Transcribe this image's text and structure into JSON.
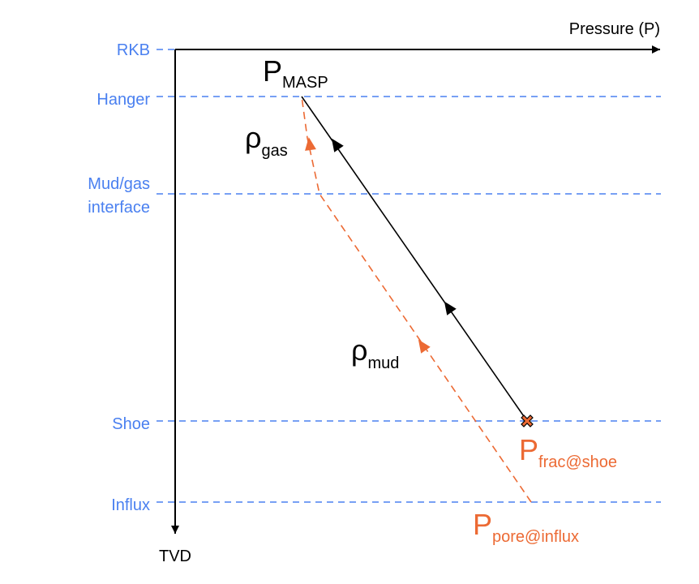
{
  "colors": {
    "blue": "#4a80f0",
    "orange": "#ec6a34",
    "black": "#000000"
  },
  "axes": {
    "x_title": "Pressure (P)",
    "y_title": "TVD"
  },
  "depth_levels": {
    "rkb": "RKB",
    "hanger": "Hanger",
    "interface_line1": "Mud/gas",
    "interface_line2": "interface",
    "shoe": "Shoe",
    "influx": "Influx"
  },
  "symbols": {
    "masp": {
      "main": "P",
      "sub": "MASP"
    },
    "rho_gas": {
      "main": "ρ",
      "sub": "gas"
    },
    "rho_mud": {
      "main": "ρ",
      "sub": "mud"
    },
    "p_frac": {
      "main": "P",
      "sub": "frac@shoe"
    },
    "p_pore": {
      "main": "P",
      "sub": "pore@influx"
    }
  }
}
